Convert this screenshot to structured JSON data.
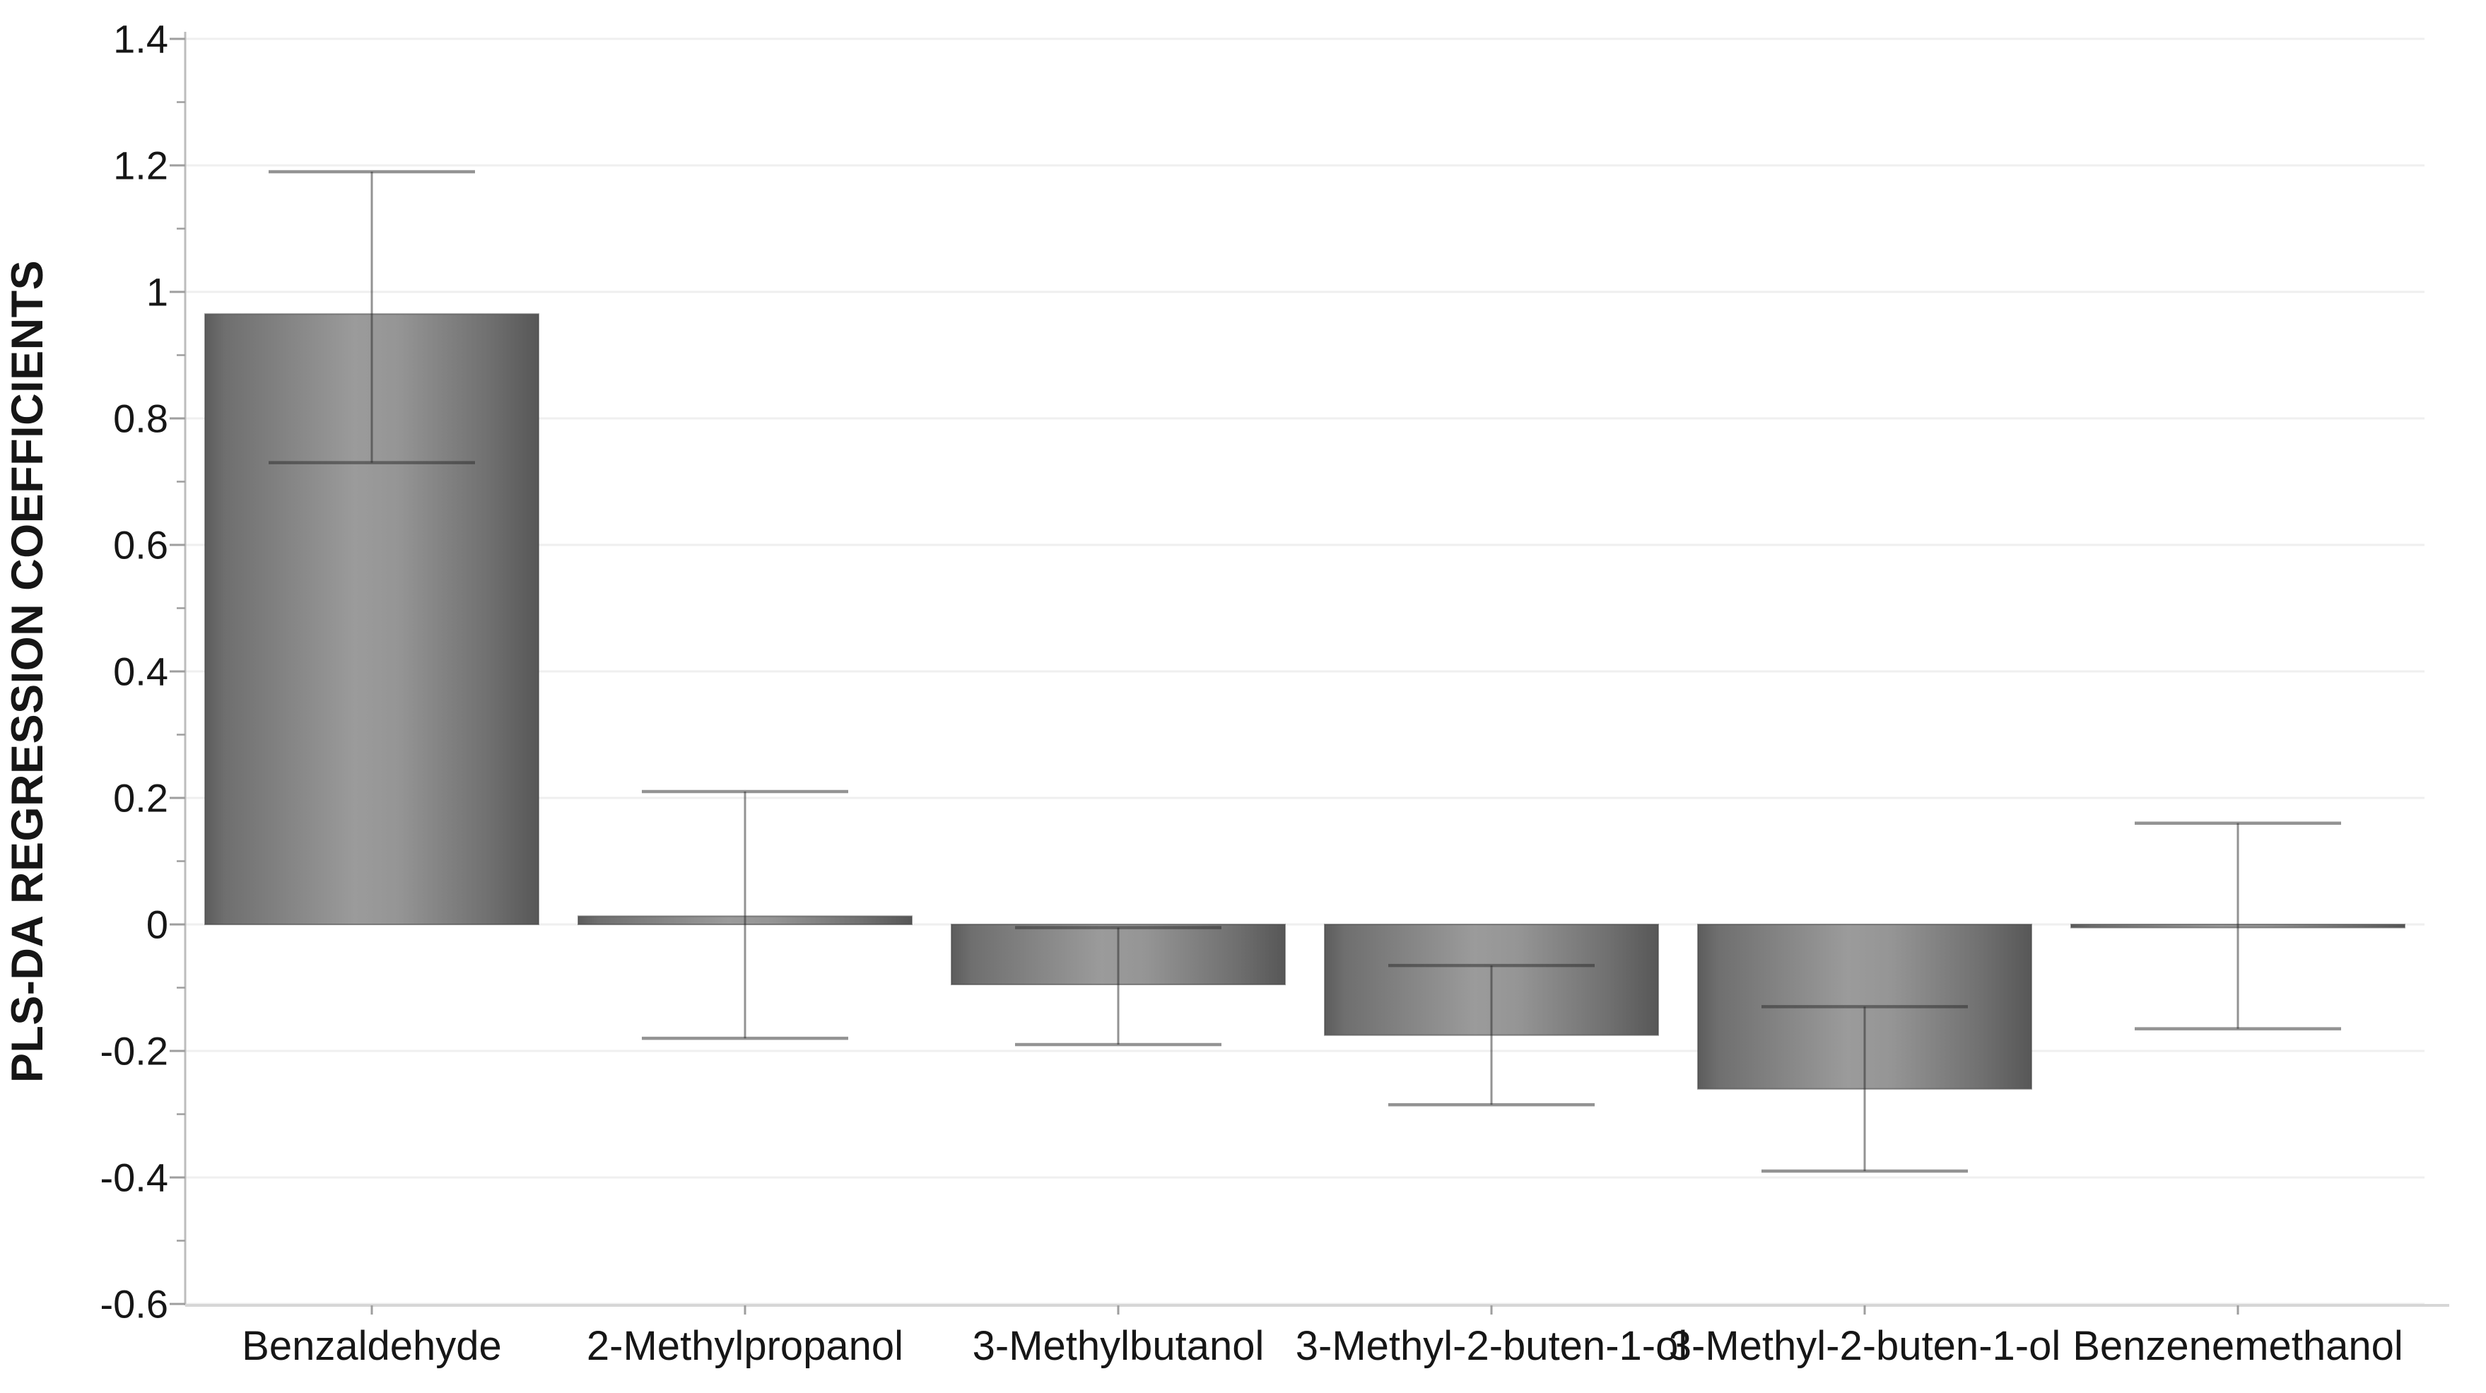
{
  "chart_data": {
    "type": "bar",
    "title": "",
    "xlabel": "",
    "ylabel": "PLS-DA REGRESSION COEFFICIENTS",
    "ylim": [
      -0.6,
      1.4
    ],
    "grid": "horizontal major gridlines",
    "legend_position": "none",
    "background": "#ffffff",
    "categories": [
      "Benzaldehyde",
      "2-Methylpropanol",
      "3-Methylbutanol",
      "3-Methyl-2-buten-1-ol",
      "3-Methyl-2-buten-1-ol",
      "Benzenemethanol"
    ],
    "values": [
      0.965,
      0.013,
      -0.095,
      -0.175,
      -0.26,
      -0.005
    ],
    "error_low": [
      0.73,
      -0.18,
      -0.19,
      -0.285,
      -0.39,
      -0.165
    ],
    "error_high": [
      1.19,
      0.21,
      -0.005,
      -0.065,
      -0.13,
      0.16
    ],
    "yticks": [
      {
        "value": 1.4,
        "label": "1.4"
      },
      {
        "value": 1.2,
        "label": "1.2"
      },
      {
        "value": 1.0,
        "label": "1"
      },
      {
        "value": 0.8,
        "label": "0.8"
      },
      {
        "value": 0.6,
        "label": "0.6"
      },
      {
        "value": 0.4,
        "label": "0.4"
      },
      {
        "value": 0.2,
        "label": "0.2"
      },
      {
        "value": 0.0,
        "label": "0"
      },
      {
        "value": -0.2,
        "label": "-0.2"
      },
      {
        "value": -0.4,
        "label": "-0.4"
      },
      {
        "value": -0.6,
        "label": "-0.6"
      }
    ],
    "minor_yticks": [
      1.3,
      1.1,
      0.9,
      0.7,
      0.5,
      0.3,
      0.1,
      -0.1,
      -0.3,
      -0.5
    ],
    "colors": {
      "bar_gradient_stops": [
        {
          "offset": "0%",
          "color": "#5c5c5c"
        },
        {
          "offset": "6%",
          "color": "#6f6f6f"
        },
        {
          "offset": "45%",
          "color": "#9b9b9b"
        },
        {
          "offset": "58%",
          "color": "#959595"
        },
        {
          "offset": "85%",
          "color": "#707070"
        },
        {
          "offset": "100%",
          "color": "#575757"
        }
      ],
      "bar_outline": "rgba(70,70,70,0.55)",
      "error_bar": "rgba(40,40,40,0.5)",
      "gridline": "#efefef",
      "y_axis_line": "#bdbdbd",
      "x_axis_line": "#d6d6d6",
      "tick": "#9e9e9e",
      "text": "#161616"
    }
  }
}
